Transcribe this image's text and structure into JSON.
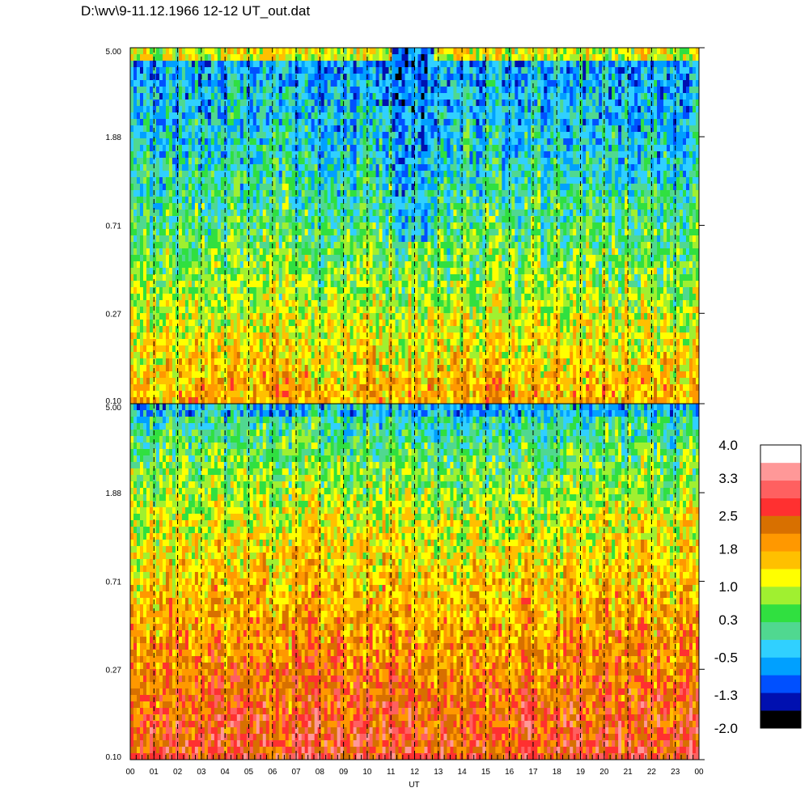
{
  "title": "D:\\wv\\9-11.12.1966  12-12 UT_out.dat",
  "colors": {
    "scale": [
      "#000000",
      "#0010b0",
      "#0050ff",
      "#00a0ff",
      "#30d0ff",
      "#50d890",
      "#30e040",
      "#a0f030",
      "#ffff00",
      "#ffc000",
      "#ff9800",
      "#d87000",
      "#ff3030",
      "#ff6060",
      "#ff9898",
      "#ffffff"
    ]
  },
  "chart_data": [
    {
      "type": "heatmap",
      "panel": "top",
      "xlabel": "UT",
      "ylabel": "",
      "xlim": [
        0,
        24
      ],
      "ylim": [
        0.1,
        5.0
      ],
      "y_scale": "log",
      "x_tick_labels": [
        "00",
        "01",
        "02",
        "03",
        "04",
        "05",
        "06",
        "07",
        "08",
        "09",
        "10",
        "11",
        "12",
        "13",
        "14",
        "15",
        "16",
        "17",
        "18",
        "19",
        "20",
        "21",
        "22",
        "23",
        "00"
      ],
      "y_tick_labels": [
        "5.00",
        "1.88",
        "0.71",
        "0.27",
        "0.10"
      ],
      "y_tick_values": [
        5.0,
        1.88,
        0.71,
        0.27,
        0.1
      ],
      "notable_feature": {
        "x_range": [
          11.0,
          12.8
        ],
        "y_range": [
          0.5,
          5.0
        ],
        "value_level": -1.3
      }
    },
    {
      "type": "heatmap",
      "panel": "bottom",
      "xlabel": "UT",
      "ylabel": "",
      "xlim": [
        0,
        24
      ],
      "ylim": [
        0.1,
        5.0
      ],
      "y_scale": "log",
      "x_tick_labels": [
        "00",
        "01",
        "02",
        "03",
        "04",
        "05",
        "06",
        "07",
        "08",
        "09",
        "10",
        "11",
        "12",
        "13",
        "14",
        "15",
        "16",
        "17",
        "18",
        "19",
        "20",
        "21",
        "22",
        "23",
        "00"
      ],
      "y_tick_labels": [
        "5.00",
        "1.88",
        "0.71",
        "0.27",
        "0.10"
      ],
      "y_tick_values": [
        5.0,
        1.88,
        0.71,
        0.27,
        0.1
      ]
    }
  ],
  "colorbar": {
    "range": [
      -2.0,
      4.0
    ],
    "levels": 16,
    "labels": [
      "4.0",
      "3.3",
      "2.5",
      "1.8",
      "1.0",
      "0.3",
      "-0.5",
      "-1.3",
      "-2.0"
    ]
  }
}
